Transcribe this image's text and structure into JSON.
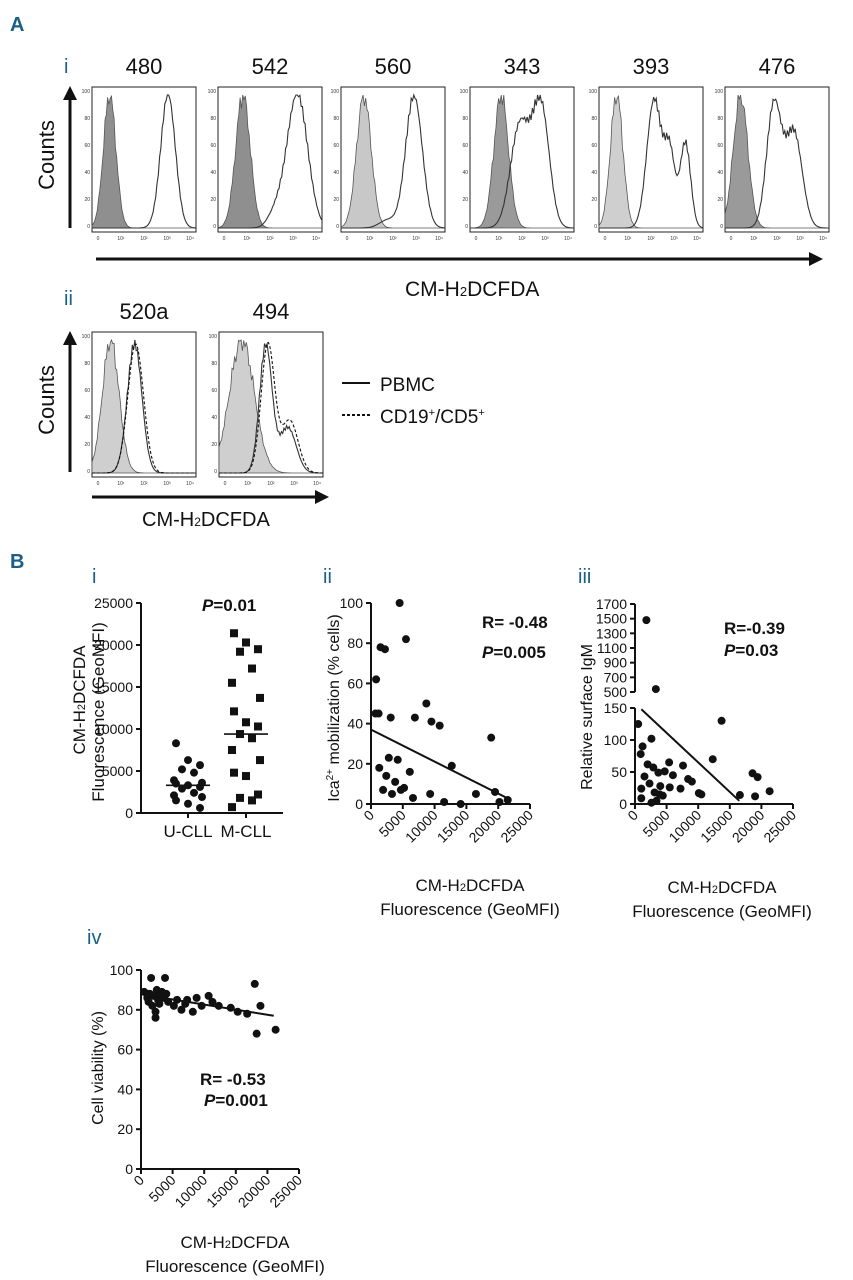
{
  "panel_labels": {
    "A": "A",
    "B": "B"
  },
  "sub_labels": {
    "Ai": "i",
    "Aii": "ii",
    "Bi": "i",
    "Bii": "ii",
    "Biii": "iii",
    "Biv": "iv"
  },
  "colors": {
    "panel_letter": "#1a5f86",
    "gray_fill": "#9a9a9a",
    "light_fill": "#cfcfcf",
    "line": "#222222"
  },
  "chart_data": [
    {
      "id": "A-i",
      "type": "histogram-overlay",
      "titles": [
        "480",
        "542",
        "560",
        "343",
        "393",
        "476"
      ],
      "ylabel": "Counts",
      "xlabel": "CM-H2DCFDA",
      "xlabel_parts": {
        "pre": "CM-H",
        "sub": "2",
        "post": "DCFDA"
      },
      "tick_labels": [
        "0",
        "10¹",
        "10²",
        "10³",
        "10⁴"
      ],
      "y_ticks": [
        "100",
        "80",
        "60",
        "40",
        "20",
        "0"
      ]
    },
    {
      "id": "A-ii",
      "type": "histogram-overlay",
      "titles": [
        "520a",
        "494"
      ],
      "ylabel": "Counts",
      "xlabel": "CM-H2DCFDA",
      "xlabel_parts": {
        "pre": "CM-H",
        "sub": "2",
        "post": "DCFDA"
      },
      "legend": [
        {
          "name": "PBMC",
          "style": "solid"
        },
        {
          "name": "CD19+/CD5+",
          "parts": {
            "a": "CD19",
            "sup1": "+",
            "b": "/CD5",
            "sup2": "+"
          },
          "style": "dashed"
        }
      ]
    },
    {
      "id": "B-i",
      "type": "scatter",
      "ylabel_lines": [
        "CM-H2DCFDA",
        "Fluorescence (GeoMFI)"
      ],
      "ylabel_parts": {
        "pre": "CM-H",
        "sub": "2",
        "post": "DCFDA",
        "line2": "Fluorescence (GeoMFI)"
      },
      "categories": [
        "U-CLL",
        "M-CLL"
      ],
      "yticks": [
        0,
        5000,
        10000,
        15000,
        20000,
        25000
      ],
      "ylim": [
        0,
        25000
      ],
      "stat": {
        "label": "P",
        "value": "=0.01"
      },
      "groups": [
        {
          "name": "U-CLL",
          "marker": "circle",
          "median": 3300,
          "values": [
            8300,
            6300,
            5700,
            5200,
            4800,
            3900,
            3600,
            3500,
            3300,
            3100,
            2900,
            2400,
            2100,
            1900,
            1500,
            1100,
            600
          ]
        },
        {
          "name": "M-CLL",
          "marker": "square",
          "median": 9400,
          "values": [
            21400,
            20300,
            19500,
            19200,
            17200,
            15500,
            13700,
            12100,
            10800,
            10300,
            9400,
            8900,
            7500,
            6300,
            4800,
            4400,
            2200,
            1800,
            1500,
            700
          ]
        }
      ]
    },
    {
      "id": "B-ii",
      "type": "scatter",
      "ylabel": "Ica2+ mobilization (% cells)",
      "ylabel_parts": {
        "pre": "Ica",
        "sup": "2+",
        "post": " mobilization (% cells)"
      },
      "xlabel_lines": [
        "CM-H2DCFDA",
        "Fluorescence (GeoMFI)"
      ],
      "xlabel_parts": {
        "pre": "CM-H",
        "sub": "2",
        "post": "DCFDA",
        "line2": "Fluorescence (GeoMFI)"
      },
      "xlim": [
        0,
        25000
      ],
      "ylim": [
        0,
        100
      ],
      "xticks": [
        0,
        5000,
        10000,
        15000,
        20000,
        25000
      ],
      "yticks": [
        0,
        20,
        40,
        60,
        80,
        100
      ],
      "stat_r": "R= -0.48",
      "stat_p": {
        "label": "P",
        "value": "=0.005"
      },
      "fit": {
        "x": [
          0,
          22000
        ],
        "y": [
          37,
          2
        ]
      },
      "points": [
        [
          4500,
          100
        ],
        [
          5500,
          82
        ],
        [
          1500,
          78
        ],
        [
          2200,
          77
        ],
        [
          800,
          62
        ],
        [
          700,
          45
        ],
        [
          1200,
          45
        ],
        [
          3100,
          43
        ],
        [
          8700,
          50
        ],
        [
          6900,
          43
        ],
        [
          9500,
          41
        ],
        [
          10800,
          39
        ],
        [
          18900,
          33
        ],
        [
          2800,
          23
        ],
        [
          4200,
          22
        ],
        [
          1300,
          18
        ],
        [
          6100,
          16
        ],
        [
          12700,
          19
        ],
        [
          2400,
          14
        ],
        [
          3800,
          11
        ],
        [
          4700,
          7
        ],
        [
          1900,
          7
        ],
        [
          3300,
          5
        ],
        [
          9300,
          5
        ],
        [
          6600,
          3
        ],
        [
          11500,
          1
        ],
        [
          19500,
          6
        ],
        [
          16500,
          5
        ],
        [
          20200,
          1
        ],
        [
          21500,
          2
        ],
        [
          14100,
          0
        ],
        [
          5200,
          8
        ]
      ]
    },
    {
      "id": "B-iii",
      "type": "scatter",
      "ylabel": "Relative surface IgM",
      "xlabel_lines": [
        "CM-H2DCFDA",
        "Fluorescence (GeoMFI)"
      ],
      "xlabel_parts": {
        "pre": "CM-H",
        "sub": "2",
        "post": "DCFDA",
        "line2": "Fluorescence (GeoMFI)"
      },
      "xlim": [
        0,
        25000
      ],
      "ylim_lower": [
        0,
        150
      ],
      "ylim_upper": [
        500,
        1700
      ],
      "xticks": [
        0,
        5000,
        10000,
        15000,
        20000,
        25000
      ],
      "yticks_lower": [
        0,
        50,
        100,
        150
      ],
      "yticks_upper": [
        500,
        700,
        900,
        1100,
        1300,
        1500,
        1700
      ],
      "stat_r": "R=-0.39",
      "stat_p": {
        "label": "P",
        "value": "=0.03"
      },
      "fit": {
        "x": [
          1000,
          16500
        ],
        "y": [
          148,
          5
        ]
      },
      "points": [
        [
          1800,
          1480
        ],
        [
          3300,
          540
        ],
        [
          500,
          125
        ],
        [
          2600,
          102
        ],
        [
          1200,
          90
        ],
        [
          900,
          78
        ],
        [
          5400,
          65
        ],
        [
          7600,
          60
        ],
        [
          13700,
          130
        ],
        [
          12300,
          70
        ],
        [
          2000,
          62
        ],
        [
          2900,
          57
        ],
        [
          4700,
          51
        ],
        [
          3700,
          49
        ],
        [
          6000,
          45
        ],
        [
          1500,
          43
        ],
        [
          8400,
          39
        ],
        [
          9000,
          35
        ],
        [
          2300,
          32
        ],
        [
          4000,
          28
        ],
        [
          5500,
          26
        ],
        [
          1000,
          24
        ],
        [
          3100,
          18
        ],
        [
          3900,
          15
        ],
        [
          4400,
          13
        ],
        [
          3400,
          5
        ],
        [
          7200,
          24
        ],
        [
          10500,
          15
        ],
        [
          10100,
          17
        ],
        [
          16600,
          14
        ],
        [
          18600,
          48
        ],
        [
          19400,
          42
        ],
        [
          21300,
          20
        ],
        [
          19000,
          12
        ],
        [
          1000,
          9
        ],
        [
          2600,
          2
        ]
      ]
    },
    {
      "id": "B-iv",
      "type": "scatter",
      "ylabel": "Cell viability (%)",
      "xlabel_lines": [
        "CM-H2DCFDA",
        "Fluorescence (GeoMFI)"
      ],
      "xlabel_parts": {
        "pre": "CM-H",
        "sub": "2",
        "post": "DCFDA",
        "line2": "Fluorescence (GeoMFI)"
      },
      "xlim": [
        0,
        25000
      ],
      "ylim": [
        0,
        100
      ],
      "xticks": [
        0,
        5000,
        10000,
        15000,
        20000,
        25000
      ],
      "yticks": [
        0,
        20,
        40,
        60,
        80,
        100
      ],
      "stat_r": "R= -0.53",
      "stat_p": {
        "label": "P",
        "value": "=0.001"
      },
      "fit": {
        "x": [
          500,
          21000
        ],
        "y": [
          87.5,
          77
        ]
      },
      "points": [
        [
          500,
          89
        ],
        [
          1000,
          86
        ],
        [
          1200,
          84
        ],
        [
          1400,
          88
        ],
        [
          1600,
          96
        ],
        [
          1800,
          82
        ],
        [
          2000,
          87
        ],
        [
          2300,
          79
        ],
        [
          2500,
          90
        ],
        [
          2700,
          85
        ],
        [
          2900,
          83
        ],
        [
          3100,
          88
        ],
        [
          3300,
          89
        ],
        [
          3600,
          86
        ],
        [
          3800,
          96
        ],
        [
          4000,
          88
        ],
        [
          4300,
          84
        ],
        [
          5200,
          82
        ],
        [
          5700,
          85
        ],
        [
          6400,
          80
        ],
        [
          7000,
          83
        ],
        [
          7300,
          85
        ],
        [
          8200,
          79
        ],
        [
          8800,
          86
        ],
        [
          9600,
          82
        ],
        [
          10700,
          87
        ],
        [
          11300,
          84
        ],
        [
          12300,
          82
        ],
        [
          14200,
          81
        ],
        [
          15300,
          79
        ],
        [
          16800,
          78
        ],
        [
          18000,
          93
        ],
        [
          18300,
          68
        ],
        [
          18900,
          82
        ],
        [
          21300,
          70
        ],
        [
          2300,
          76
        ],
        [
          1200,
          88
        ]
      ]
    }
  ]
}
